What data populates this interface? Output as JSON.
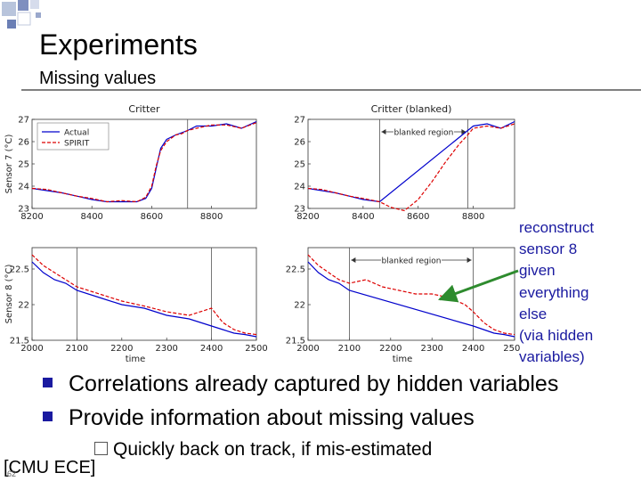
{
  "slide": {
    "title": "Experiments",
    "subtitle": "Missing values",
    "page_number": "62",
    "footer": "[CMU ECE]"
  },
  "annotation": {
    "text": "reconstruct\nsensor 8\ngiven\neverything\nelse\n(via hidden\nvariables)",
    "arrow_color": "#2e8b2e",
    "text_color": "#1a1aa0"
  },
  "bullets": [
    "Correlations already captured by hidden variables",
    "Provide information about missing values"
  ],
  "sub_bullets": [
    "Quickly back on track, if mis-estimated"
  ],
  "colors": {
    "accent": "#1a1aa0",
    "actual_series": "#0000cc",
    "spirit_series": "#dd0000"
  },
  "chart_data": [
    {
      "type": "line",
      "title": "Critter",
      "ylabel": "Sensor 7 (°C)",
      "xlim": [
        8200,
        8950
      ],
      "ylim": [
        23,
        27
      ],
      "x_ticks": [
        8200,
        8400,
        8600,
        8800
      ],
      "y_ticks": [
        23,
        24,
        25,
        26,
        27
      ],
      "legend": {
        "placement": "top-left",
        "entries": [
          "Actual",
          "SPIRIT"
        ]
      },
      "vlines": [
        8720
      ],
      "series": [
        {
          "name": "Actual",
          "style": "solid",
          "x": [
            8200,
            8250,
            8300,
            8350,
            8400,
            8450,
            8500,
            8550,
            8580,
            8600,
            8615,
            8630,
            8650,
            8680,
            8700,
            8720,
            8750,
            8800,
            8850,
            8900,
            8950
          ],
          "values": [
            23.9,
            23.8,
            23.7,
            23.55,
            23.4,
            23.3,
            23.3,
            23.3,
            23.45,
            23.9,
            24.8,
            25.7,
            26.1,
            26.3,
            26.4,
            26.5,
            26.7,
            26.7,
            26.8,
            26.6,
            26.9
          ]
        },
        {
          "name": "SPIRIT",
          "style": "dashed",
          "x": [
            8200,
            8250,
            8300,
            8350,
            8400,
            8450,
            8500,
            8550,
            8580,
            8600,
            8615,
            8630,
            8650,
            8680,
            8700,
            8720,
            8750,
            8800,
            8850,
            8900,
            8950
          ],
          "values": [
            23.9,
            23.85,
            23.7,
            23.55,
            23.45,
            23.3,
            23.35,
            23.3,
            23.5,
            24.0,
            24.9,
            25.6,
            26.0,
            26.3,
            26.35,
            26.5,
            26.6,
            26.75,
            26.75,
            26.6,
            26.85
          ]
        }
      ]
    },
    {
      "type": "line",
      "title": "Critter (blanked)",
      "xlim": [
        8200,
        8950
      ],
      "ylim": [
        23,
        27
      ],
      "x_ticks": [
        8200,
        8400,
        8600,
        8800
      ],
      "y_ticks": [
        23,
        24,
        25,
        26,
        27
      ],
      "annotations": [
        "blanked region"
      ],
      "vlines": [
        8460,
        8780
      ],
      "series": [
        {
          "name": "Actual",
          "style": "solid",
          "x": [
            8200,
            8250,
            8300,
            8350,
            8400,
            8460,
            8780,
            8800,
            8850,
            8900,
            8950
          ],
          "values": [
            23.9,
            23.8,
            23.7,
            23.55,
            23.4,
            23.3,
            26.5,
            26.7,
            26.8,
            26.6,
            26.9
          ]
        },
        {
          "name": "SPIRIT",
          "style": "dashed",
          "x": [
            8200,
            8250,
            8300,
            8350,
            8400,
            8460,
            8500,
            8550,
            8600,
            8650,
            8700,
            8750,
            8780,
            8800,
            8850,
            8900,
            8950
          ],
          "values": [
            23.9,
            23.85,
            23.7,
            23.55,
            23.45,
            23.3,
            23.05,
            22.9,
            23.4,
            24.2,
            25.1,
            25.9,
            26.3,
            26.6,
            26.7,
            26.6,
            26.8
          ]
        }
      ]
    },
    {
      "type": "line",
      "xlabel": "time",
      "ylabel": "Sensor 8 (°C)",
      "xlim": [
        2000,
        2500
      ],
      "ylim": [
        21.5,
        22.8
      ],
      "x_ticks": [
        2000,
        2100,
        2200,
        2300,
        2400,
        2500
      ],
      "y_ticks": [
        21.5,
        22,
        22.5
      ],
      "vlines": [
        2100,
        2400
      ],
      "series": [
        {
          "name": "Actual",
          "style": "solid",
          "x": [
            2000,
            2025,
            2050,
            2075,
            2100,
            2150,
            2200,
            2250,
            2300,
            2350,
            2400,
            2425,
            2450,
            2475,
            2500
          ],
          "values": [
            22.6,
            22.45,
            22.35,
            22.3,
            22.2,
            22.1,
            22.0,
            21.95,
            21.85,
            21.8,
            21.7,
            21.65,
            21.6,
            21.58,
            21.55
          ]
        },
        {
          "name": "SPIRIT",
          "style": "dashed",
          "x": [
            2000,
            2025,
            2050,
            2075,
            2100,
            2150,
            2200,
            2250,
            2300,
            2350,
            2400,
            2425,
            2450,
            2475,
            2500
          ],
          "values": [
            22.7,
            22.55,
            22.45,
            22.35,
            22.25,
            22.15,
            22.05,
            21.98,
            21.9,
            21.85,
            21.95,
            21.75,
            21.65,
            21.6,
            21.58
          ]
        }
      ]
    },
    {
      "type": "line",
      "xlabel": "time",
      "xlim": [
        2000,
        2500
      ],
      "ylim": [
        21.5,
        22.8
      ],
      "x_ticks": [
        2000,
        2100,
        2200,
        2300,
        2400,
        2500
      ],
      "y_ticks": [
        21.5,
        22,
        22.5
      ],
      "annotations": [
        "blanked region"
      ],
      "vlines": [
        2100,
        2400
      ],
      "series": [
        {
          "name": "Actual",
          "style": "solid",
          "x": [
            2000,
            2025,
            2050,
            2075,
            2100,
            2400,
            2425,
            2450,
            2475,
            2500
          ],
          "values": [
            22.6,
            22.45,
            22.35,
            22.3,
            22.2,
            21.7,
            21.65,
            21.6,
            21.58,
            21.55
          ]
        },
        {
          "name": "SPIRIT",
          "style": "dashed",
          "x": [
            2000,
            2025,
            2050,
            2075,
            2100,
            2140,
            2180,
            2220,
            2260,
            2300,
            2340,
            2380,
            2400,
            2425,
            2450,
            2475,
            2500
          ],
          "values": [
            22.7,
            22.55,
            22.45,
            22.35,
            22.3,
            22.35,
            22.25,
            22.2,
            22.15,
            22.15,
            22.1,
            22.0,
            21.9,
            21.75,
            21.65,
            21.6,
            21.58
          ]
        }
      ]
    }
  ]
}
